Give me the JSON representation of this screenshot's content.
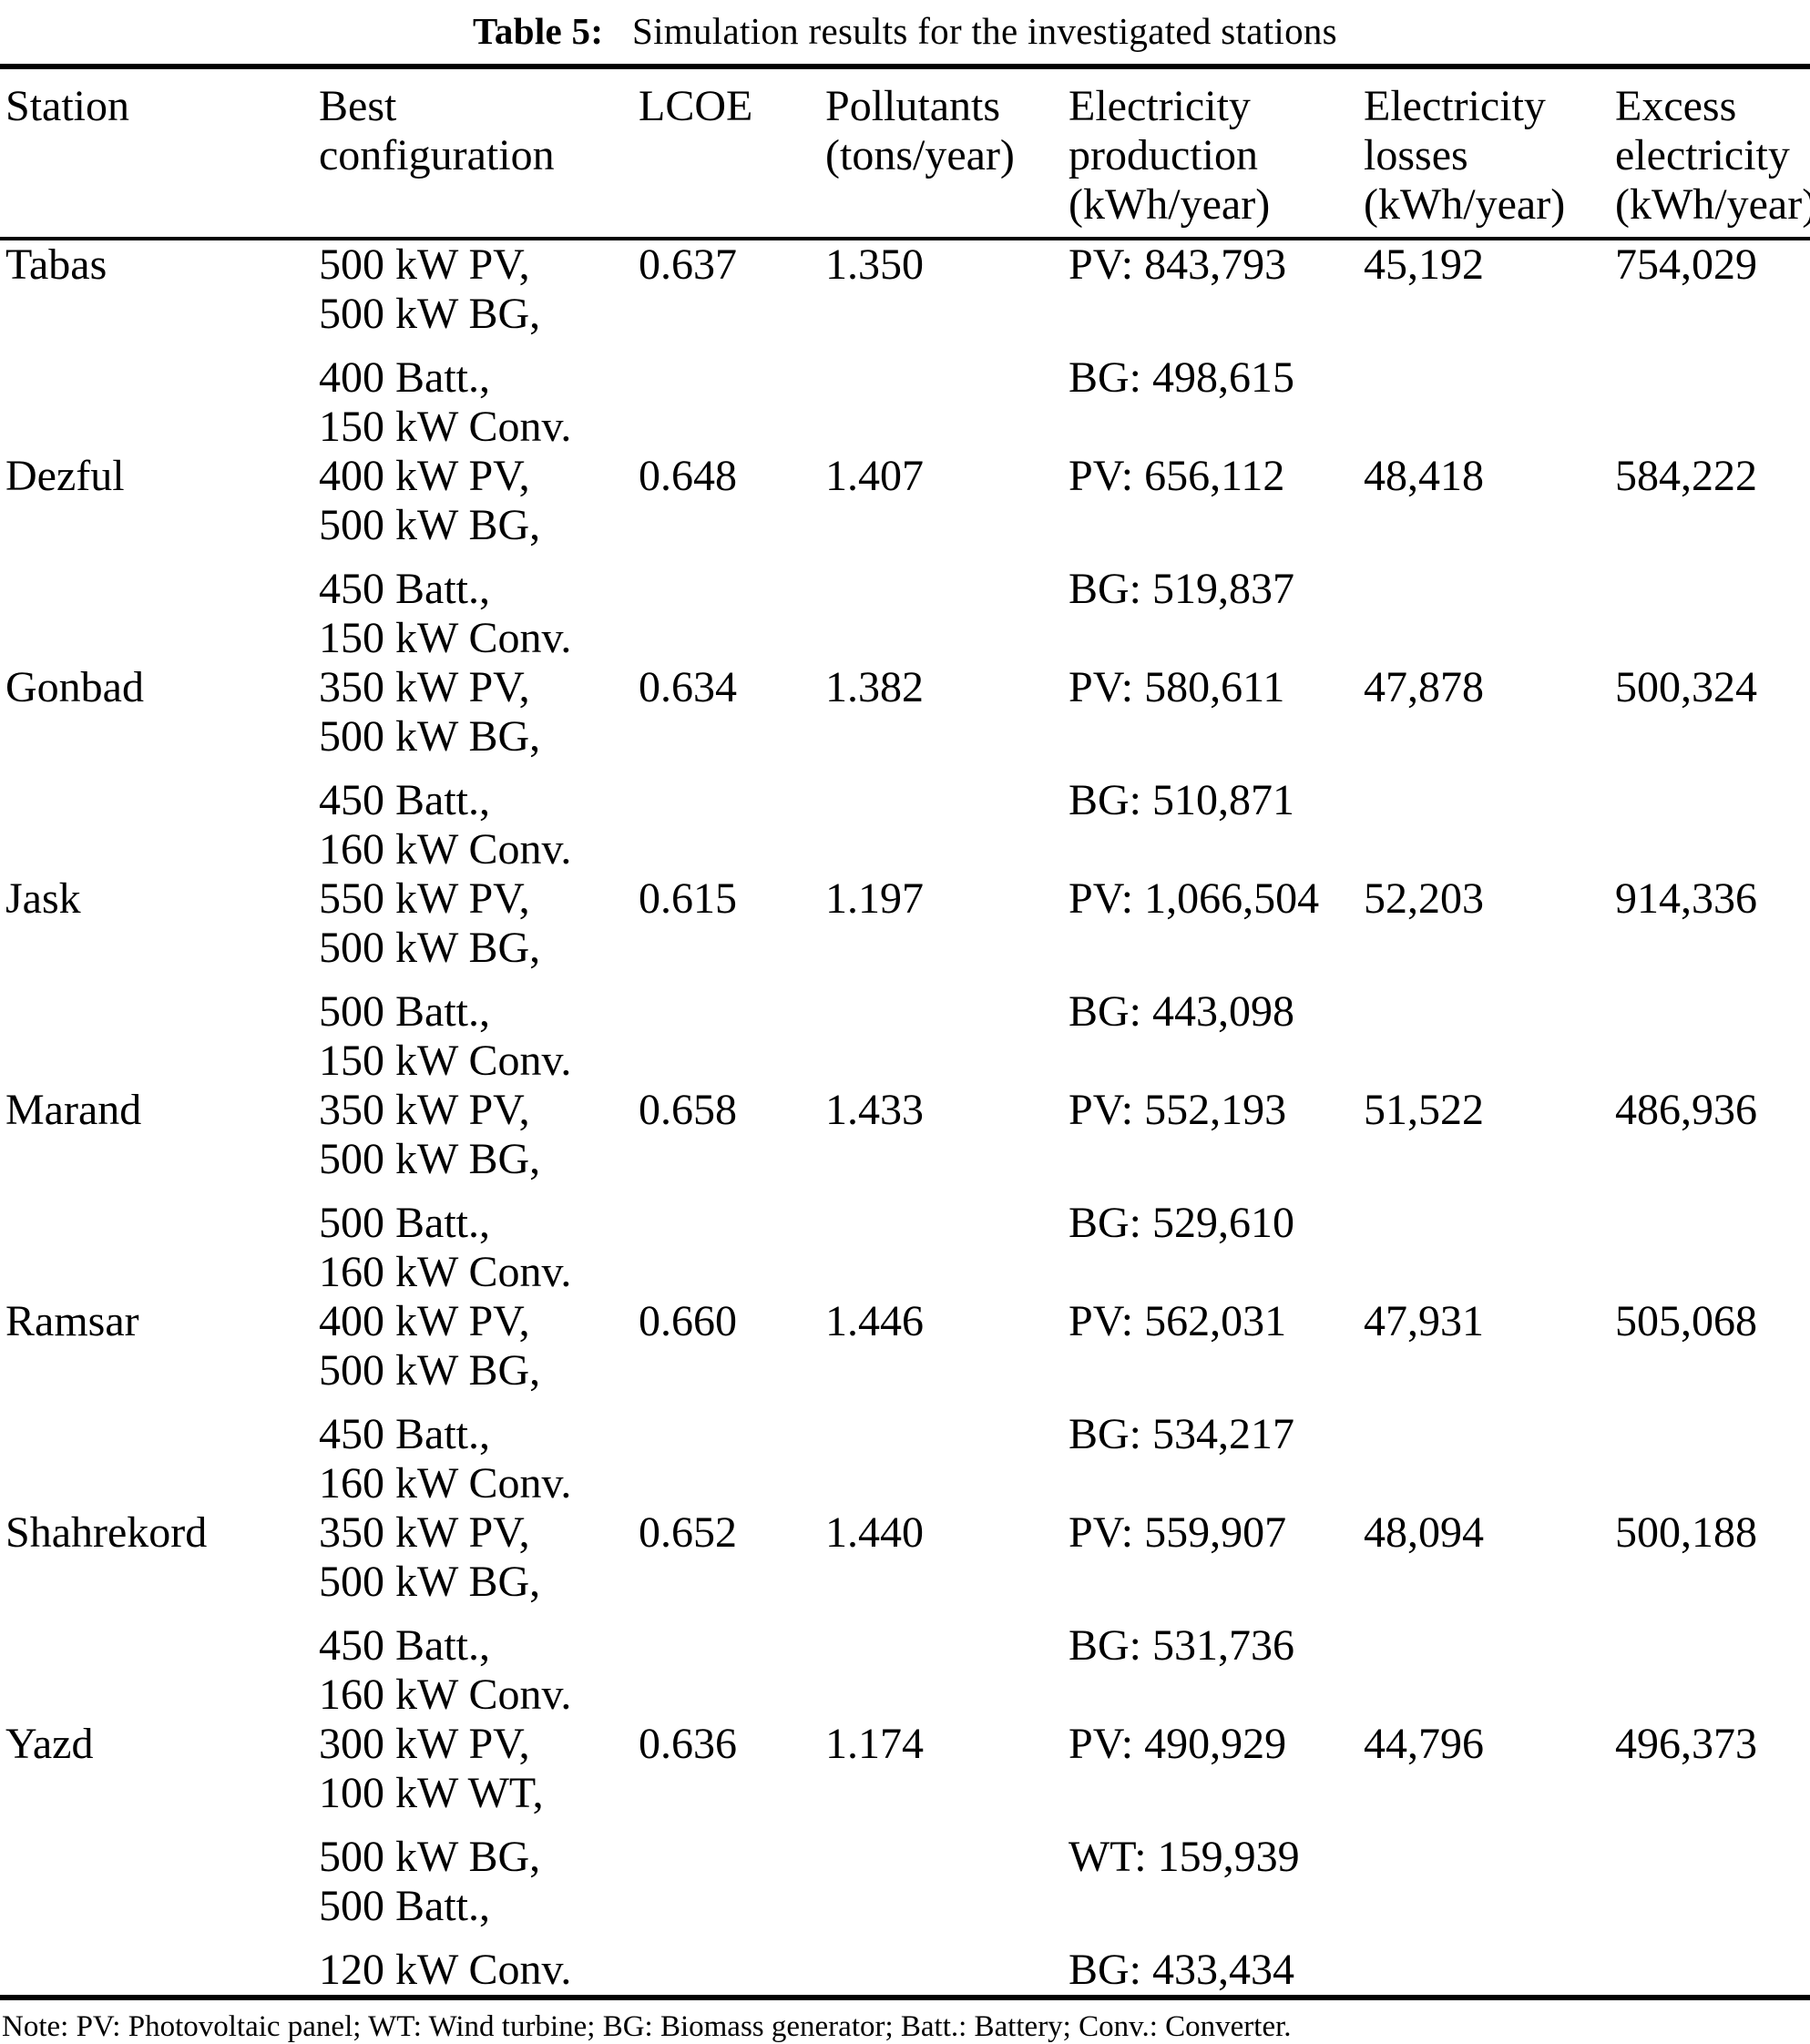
{
  "title": {
    "label": "Table 5:",
    "text": "Simulation results for the investigated stations"
  },
  "colors": {
    "text": "#000000",
    "background": "#ffffff",
    "rule": "#000000"
  },
  "columns": [
    {
      "lines": [
        "Station"
      ]
    },
    {
      "lines": [
        "Best",
        "configuration"
      ]
    },
    {
      "lines": [
        "LCOE"
      ]
    },
    {
      "lines": [
        "Pollutants",
        "(tons/year)"
      ]
    },
    {
      "lines": [
        "Electricity",
        "production",
        "(kWh/year)"
      ]
    },
    {
      "lines": [
        "Electricity",
        "losses",
        "(kWh/year)"
      ]
    },
    {
      "lines": [
        "Excess",
        "electricity",
        "(kWh/year)"
      ]
    }
  ],
  "rows": [
    {
      "station": "Tabas",
      "config": [
        "500 kW PV,",
        "500 kW BG,",
        "400 Batt.,",
        "150 kW Conv."
      ],
      "lcoe": "0.637",
      "pollutants": "1.350",
      "production": [
        "PV: 843,793",
        "BG: 498,615"
      ],
      "losses": "45,192",
      "excess": "754,029"
    },
    {
      "station": "Dezful",
      "config": [
        "400 kW PV,",
        "500 kW BG,",
        "450 Batt.,",
        "150 kW Conv."
      ],
      "lcoe": "0.648",
      "pollutants": "1.407",
      "production": [
        "PV: 656,112",
        "BG: 519,837"
      ],
      "losses": "48,418",
      "excess": "584,222"
    },
    {
      "station": "Gonbad",
      "config": [
        "350 kW PV,",
        "500 kW BG,",
        "450 Batt.,",
        "160 kW Conv."
      ],
      "lcoe": "0.634",
      "pollutants": "1.382",
      "production": [
        "PV: 580,611",
        "BG: 510,871"
      ],
      "losses": "47,878",
      "excess": "500,324"
    },
    {
      "station": "Jask",
      "config": [
        "550 kW PV,",
        "500 kW BG,",
        "500 Batt.,",
        "150 kW Conv."
      ],
      "lcoe": "0.615",
      "pollutants": "1.197",
      "production": [
        "PV: 1,066,504",
        "BG: 443,098"
      ],
      "losses": "52,203",
      "excess": "914,336"
    },
    {
      "station": "Marand",
      "config": [
        "350 kW PV,",
        "500 kW BG,",
        "500 Batt.,",
        "160 kW Conv."
      ],
      "lcoe": "0.658",
      "pollutants": "1.433",
      "production": [
        "PV: 552,193",
        "BG: 529,610"
      ],
      "losses": "51,522",
      "excess": "486,936"
    },
    {
      "station": "Ramsar",
      "config": [
        "400 kW PV,",
        "500 kW BG,",
        "450 Batt.,",
        "160 kW Conv."
      ],
      "lcoe": "0.660",
      "pollutants": "1.446",
      "production": [
        "PV: 562,031",
        "BG: 534,217"
      ],
      "losses": "47,931",
      "excess": "505,068"
    },
    {
      "station": "Shahrekord",
      "config": [
        "350 kW PV,",
        "500 kW BG,",
        "450 Batt.,",
        "160 kW Conv."
      ],
      "lcoe": "0.652",
      "pollutants": "1.440",
      "production": [
        "PV: 559,907",
        "BG: 531,736"
      ],
      "losses": "48,094",
      "excess": "500,188"
    },
    {
      "station": "Yazd",
      "config": [
        "300 kW PV,",
        "100 kW WT,",
        "500 kW BG,",
        "500 Batt.,",
        "120 kW Conv."
      ],
      "lcoe": "0.636",
      "pollutants": "1.174",
      "production": [
        "PV: 490,929",
        "WT: 159,939",
        "BG: 433,434"
      ],
      "losses": "44,796",
      "excess": "496,373"
    }
  ],
  "note": {
    "text": "Note: PV: Photovoltaic panel; WT: Wind turbine; BG: Biomass generator; Batt.: Battery; Conv.: Converter."
  }
}
